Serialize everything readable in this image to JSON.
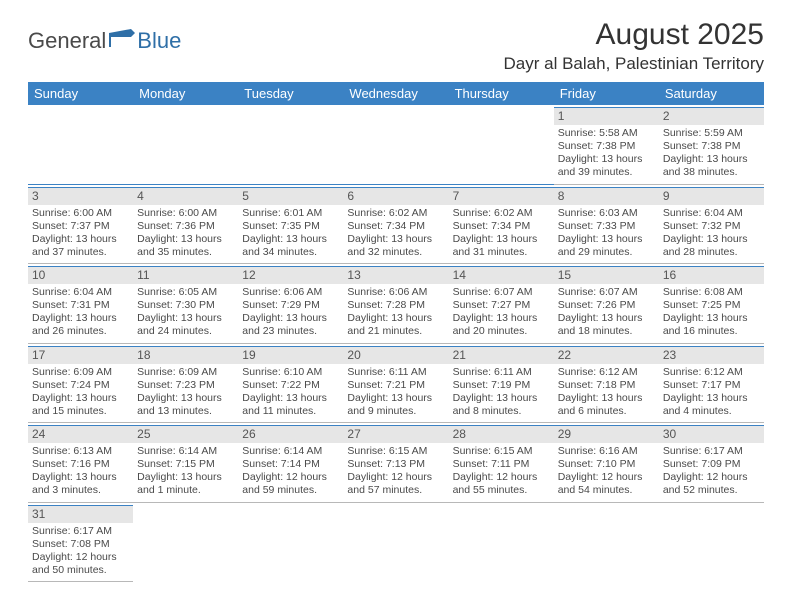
{
  "brand": {
    "part1": "General",
    "part2": "Blue"
  },
  "title": "August 2025",
  "location": "Dayr al Balah, Palestinian Territory",
  "colors": {
    "header_bg": "#3b82c4",
    "header_text": "#ffffff",
    "daynum_bg": "#e6e6e6",
    "row_divider": "#3b82c4",
    "text": "#4a4a4a"
  },
  "dayHeaders": [
    "Sunday",
    "Monday",
    "Tuesday",
    "Wednesday",
    "Thursday",
    "Friday",
    "Saturday"
  ],
  "weeks": [
    [
      null,
      null,
      null,
      null,
      null,
      {
        "n": "1",
        "sr": "Sunrise: 5:58 AM",
        "ss": "Sunset: 7:38 PM",
        "d1": "Daylight: 13 hours",
        "d2": "and 39 minutes."
      },
      {
        "n": "2",
        "sr": "Sunrise: 5:59 AM",
        "ss": "Sunset: 7:38 PM",
        "d1": "Daylight: 13 hours",
        "d2": "and 38 minutes."
      }
    ],
    [
      {
        "n": "3",
        "sr": "Sunrise: 6:00 AM",
        "ss": "Sunset: 7:37 PM",
        "d1": "Daylight: 13 hours",
        "d2": "and 37 minutes."
      },
      {
        "n": "4",
        "sr": "Sunrise: 6:00 AM",
        "ss": "Sunset: 7:36 PM",
        "d1": "Daylight: 13 hours",
        "d2": "and 35 minutes."
      },
      {
        "n": "5",
        "sr": "Sunrise: 6:01 AM",
        "ss": "Sunset: 7:35 PM",
        "d1": "Daylight: 13 hours",
        "d2": "and 34 minutes."
      },
      {
        "n": "6",
        "sr": "Sunrise: 6:02 AM",
        "ss": "Sunset: 7:34 PM",
        "d1": "Daylight: 13 hours",
        "d2": "and 32 minutes."
      },
      {
        "n": "7",
        "sr": "Sunrise: 6:02 AM",
        "ss": "Sunset: 7:34 PM",
        "d1": "Daylight: 13 hours",
        "d2": "and 31 minutes."
      },
      {
        "n": "8",
        "sr": "Sunrise: 6:03 AM",
        "ss": "Sunset: 7:33 PM",
        "d1": "Daylight: 13 hours",
        "d2": "and 29 minutes."
      },
      {
        "n": "9",
        "sr": "Sunrise: 6:04 AM",
        "ss": "Sunset: 7:32 PM",
        "d1": "Daylight: 13 hours",
        "d2": "and 28 minutes."
      }
    ],
    [
      {
        "n": "10",
        "sr": "Sunrise: 6:04 AM",
        "ss": "Sunset: 7:31 PM",
        "d1": "Daylight: 13 hours",
        "d2": "and 26 minutes."
      },
      {
        "n": "11",
        "sr": "Sunrise: 6:05 AM",
        "ss": "Sunset: 7:30 PM",
        "d1": "Daylight: 13 hours",
        "d2": "and 24 minutes."
      },
      {
        "n": "12",
        "sr": "Sunrise: 6:06 AM",
        "ss": "Sunset: 7:29 PM",
        "d1": "Daylight: 13 hours",
        "d2": "and 23 minutes."
      },
      {
        "n": "13",
        "sr": "Sunrise: 6:06 AM",
        "ss": "Sunset: 7:28 PM",
        "d1": "Daylight: 13 hours",
        "d2": "and 21 minutes."
      },
      {
        "n": "14",
        "sr": "Sunrise: 6:07 AM",
        "ss": "Sunset: 7:27 PM",
        "d1": "Daylight: 13 hours",
        "d2": "and 20 minutes."
      },
      {
        "n": "15",
        "sr": "Sunrise: 6:07 AM",
        "ss": "Sunset: 7:26 PM",
        "d1": "Daylight: 13 hours",
        "d2": "and 18 minutes."
      },
      {
        "n": "16",
        "sr": "Sunrise: 6:08 AM",
        "ss": "Sunset: 7:25 PM",
        "d1": "Daylight: 13 hours",
        "d2": "and 16 minutes."
      }
    ],
    [
      {
        "n": "17",
        "sr": "Sunrise: 6:09 AM",
        "ss": "Sunset: 7:24 PM",
        "d1": "Daylight: 13 hours",
        "d2": "and 15 minutes."
      },
      {
        "n": "18",
        "sr": "Sunrise: 6:09 AM",
        "ss": "Sunset: 7:23 PM",
        "d1": "Daylight: 13 hours",
        "d2": "and 13 minutes."
      },
      {
        "n": "19",
        "sr": "Sunrise: 6:10 AM",
        "ss": "Sunset: 7:22 PM",
        "d1": "Daylight: 13 hours",
        "d2": "and 11 minutes."
      },
      {
        "n": "20",
        "sr": "Sunrise: 6:11 AM",
        "ss": "Sunset: 7:21 PM",
        "d1": "Daylight: 13 hours",
        "d2": "and 9 minutes."
      },
      {
        "n": "21",
        "sr": "Sunrise: 6:11 AM",
        "ss": "Sunset: 7:19 PM",
        "d1": "Daylight: 13 hours",
        "d2": "and 8 minutes."
      },
      {
        "n": "22",
        "sr": "Sunrise: 6:12 AM",
        "ss": "Sunset: 7:18 PM",
        "d1": "Daylight: 13 hours",
        "d2": "and 6 minutes."
      },
      {
        "n": "23",
        "sr": "Sunrise: 6:12 AM",
        "ss": "Sunset: 7:17 PM",
        "d1": "Daylight: 13 hours",
        "d2": "and 4 minutes."
      }
    ],
    [
      {
        "n": "24",
        "sr": "Sunrise: 6:13 AM",
        "ss": "Sunset: 7:16 PM",
        "d1": "Daylight: 13 hours",
        "d2": "and 3 minutes."
      },
      {
        "n": "25",
        "sr": "Sunrise: 6:14 AM",
        "ss": "Sunset: 7:15 PM",
        "d1": "Daylight: 13 hours",
        "d2": "and 1 minute."
      },
      {
        "n": "26",
        "sr": "Sunrise: 6:14 AM",
        "ss": "Sunset: 7:14 PM",
        "d1": "Daylight: 12 hours",
        "d2": "and 59 minutes."
      },
      {
        "n": "27",
        "sr": "Sunrise: 6:15 AM",
        "ss": "Sunset: 7:13 PM",
        "d1": "Daylight: 12 hours",
        "d2": "and 57 minutes."
      },
      {
        "n": "28",
        "sr": "Sunrise: 6:15 AM",
        "ss": "Sunset: 7:11 PM",
        "d1": "Daylight: 12 hours",
        "d2": "and 55 minutes."
      },
      {
        "n": "29",
        "sr": "Sunrise: 6:16 AM",
        "ss": "Sunset: 7:10 PM",
        "d1": "Daylight: 12 hours",
        "d2": "and 54 minutes."
      },
      {
        "n": "30",
        "sr": "Sunrise: 6:17 AM",
        "ss": "Sunset: 7:09 PM",
        "d1": "Daylight: 12 hours",
        "d2": "and 52 minutes."
      }
    ],
    [
      {
        "n": "31",
        "sr": "Sunrise: 6:17 AM",
        "ss": "Sunset: 7:08 PM",
        "d1": "Daylight: 12 hours",
        "d2": "and 50 minutes."
      },
      null,
      null,
      null,
      null,
      null,
      null
    ]
  ]
}
